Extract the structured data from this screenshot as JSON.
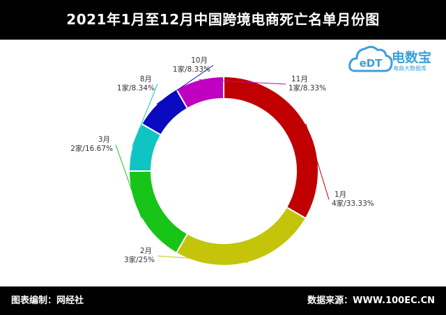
{
  "header": {
    "title": "2021年1月至12月中国跨境电商死亡名单月份图"
  },
  "logo": {
    "brand": "电数宝",
    "subtitle": "电商大数据库",
    "mark_text": "eDT"
  },
  "footer": {
    "left": "图表编制：网经社",
    "right": "数据来源：WWW.100EC.CN"
  },
  "colors": {
    "jan": "#c00000",
    "feb": "#c4c40a",
    "mar": "#18c418",
    "aug": "#10c4c4",
    "oct": "#0a0ac0",
    "nov": "#c000c0",
    "logo": "#3aa0dc"
  },
  "chart_data": {
    "type": "pie",
    "variant": "donut",
    "categories": [
      "1月",
      "2月",
      "3月",
      "8月",
      "10月",
      "11月"
    ],
    "values": [
      4,
      3,
      2,
      1,
      1,
      1
    ],
    "labels": [
      "4家/33.33%",
      "3家/25%",
      "2家/16.67%",
      "1家/8.34%",
      "1家/8.33%",
      "1家/8.33%"
    ],
    "colors": [
      "#c00000",
      "#c4c40a",
      "#18c418",
      "#10c4c4",
      "#0a0ac0",
      "#c000c0"
    ]
  }
}
